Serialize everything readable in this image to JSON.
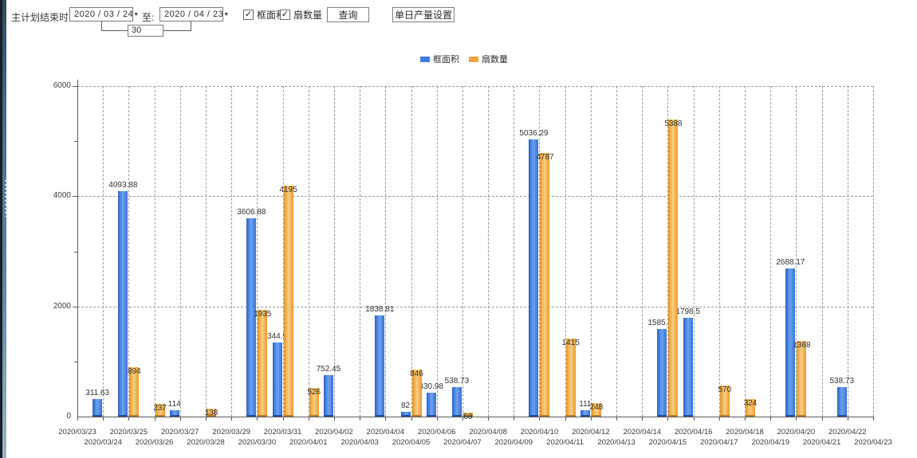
{
  "toolbar": {
    "end_time_label": "主计划结束时间:",
    "date_from": "2020 / 03 / 24",
    "to_label": "至:",
    "date_to": "2020 / 04 / 23",
    "days_value": "30",
    "checkbox_frame": {
      "label": "框面积",
      "checked": true
    },
    "checkbox_fan": {
      "label": "扇数量",
      "checked": true
    },
    "check_glyph": "✓",
    "dropdown_glyph": "▼",
    "query_button": "查询",
    "daily_output_button": "单日产量设置"
  },
  "colors": {
    "frame_blue": "#3d7edf",
    "fan_orange": "#f0a73c",
    "axis": "#5a5a5a",
    "grid": "#9c9c9c"
  },
  "chart_data": {
    "type": "bar",
    "title": "",
    "xlabel": "",
    "ylabel": "",
    "ylim": [
      0,
      6000
    ],
    "yticks": [
      0,
      2000,
      4000,
      6000
    ],
    "minor_ytick_step": 1000,
    "grid": "dashed",
    "legend_position": "top-center",
    "categories": [
      "2020/03/23",
      "2020/03/24",
      "2020/03/25",
      "2020/03/26",
      "2020/03/27",
      "2020/03/28",
      "2020/03/29",
      "2020/03/30",
      "2020/03/31",
      "2020/04/01",
      "2020/04/02",
      "2020/04/03",
      "2020/04/04",
      "2020/04/05",
      "2020/04/06",
      "2020/04/07",
      "2020/04/08",
      "2020/04/09",
      "2020/04/10",
      "2020/04/11",
      "2020/04/12",
      "2020/04/13",
      "2020/04/14",
      "2020/04/15",
      "2020/04/16",
      "2020/04/17",
      "2020/04/18",
      "2020/04/19",
      "2020/04/20",
      "2020/04/21",
      "2020/04/22",
      "2020/04/23"
    ],
    "series": [
      {
        "name": "框面积",
        "color": "#3d7edf",
        "values": [
          null,
          "311.63",
          "4093.88",
          null,
          "114",
          null,
          null,
          "3606.88",
          "1344.95",
          null,
          "752.45",
          null,
          "1838.81",
          "82",
          "430.98",
          "538.73",
          null,
          null,
          "5036.29",
          null,
          "111",
          null,
          null,
          "1585.96",
          "1798.5",
          null,
          null,
          null,
          "2688.17",
          null,
          "538.73",
          null
        ]
      },
      {
        "name": "扇数量",
        "color": "#f0a73c",
        "values": [
          null,
          null,
          "894",
          "237",
          null,
          "138",
          null,
          "1935",
          "4195",
          "526",
          null,
          null,
          null,
          "846",
          null,
          "68",
          null,
          null,
          "4787",
          "1415",
          "248",
          null,
          null,
          "5388",
          null,
          "570",
          "324",
          null,
          "1368",
          null,
          null,
          null
        ]
      }
    ]
  }
}
